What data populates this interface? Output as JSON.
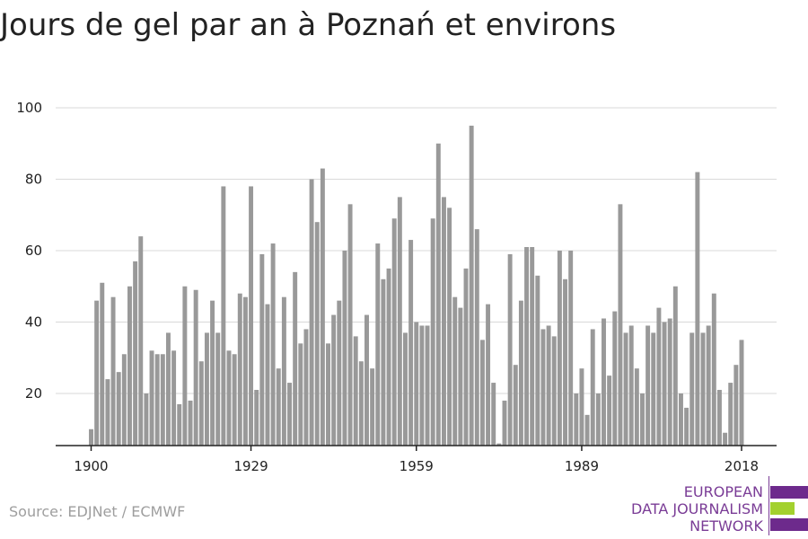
{
  "chart_data": {
    "type": "bar",
    "title": "Jours de gel par an à Poznań et environs",
    "xlabel": "",
    "ylabel": "",
    "ylim": [
      5,
      100
    ],
    "yticks": [
      20,
      40,
      60,
      80,
      100
    ],
    "xticks": [
      1900,
      1929,
      1959,
      1989,
      2018
    ],
    "grid": true,
    "bar_color": "#999999",
    "x": [
      1900,
      1901,
      1902,
      1903,
      1904,
      1905,
      1906,
      1907,
      1908,
      1909,
      1910,
      1911,
      1912,
      1913,
      1914,
      1915,
      1916,
      1917,
      1918,
      1919,
      1920,
      1921,
      1922,
      1923,
      1924,
      1925,
      1926,
      1927,
      1928,
      1929,
      1930,
      1931,
      1932,
      1933,
      1934,
      1935,
      1936,
      1937,
      1938,
      1939,
      1940,
      1941,
      1942,
      1943,
      1944,
      1945,
      1946,
      1947,
      1948,
      1949,
      1950,
      1951,
      1952,
      1953,
      1954,
      1955,
      1956,
      1957,
      1958,
      1959,
      1960,
      1961,
      1962,
      1963,
      1964,
      1965,
      1966,
      1967,
      1968,
      1969,
      1970,
      1971,
      1972,
      1973,
      1974,
      1975,
      1976,
      1977,
      1978,
      1979,
      1980,
      1981,
      1982,
      1983,
      1984,
      1985,
      1986,
      1987,
      1988,
      1989,
      1990,
      1991,
      1992,
      1993,
      1994,
      1995,
      1996,
      1997,
      1998,
      1999,
      2000,
      2001,
      2002,
      2003,
      2004,
      2005,
      2006,
      2007,
      2008,
      2009,
      2010,
      2011,
      2012,
      2013,
      2014,
      2015,
      2016,
      2017,
      2018
    ],
    "values": [
      10,
      46,
      51,
      24,
      47,
      26,
      31,
      50,
      57,
      64,
      20,
      32,
      31,
      31,
      37,
      32,
      17,
      50,
      18,
      49,
      29,
      37,
      46,
      37,
      78,
      32,
      31,
      48,
      47,
      78,
      21,
      59,
      45,
      62,
      27,
      47,
      23,
      54,
      34,
      38,
      80,
      68,
      83,
      34,
      42,
      46,
      60,
      73,
      36,
      29,
      42,
      27,
      62,
      52,
      55,
      69,
      75,
      37,
      63,
      40,
      39,
      39,
      69,
      90,
      75,
      72,
      47,
      44,
      55,
      95,
      66,
      35,
      45,
      23,
      6,
      18,
      59,
      28,
      46,
      61,
      61,
      53,
      38,
      39,
      36,
      60,
      52,
      60,
      20,
      27,
      14,
      38,
      20,
      41,
      25,
      43,
      73,
      37,
      39,
      27,
      20,
      39,
      37,
      44,
      40,
      41,
      50,
      20,
      16,
      37,
      82,
      37,
      39,
      48,
      21,
      9,
      23,
      28,
      35
    ]
  },
  "source": "Source: EDJNet / ECMWF",
  "logo": {
    "line1": "EUROPEAN",
    "line2": "DATA JOURNALISM",
    "line3": "NETWORK",
    "purple": "#6d2a8c",
    "green": "#a3d12e"
  }
}
